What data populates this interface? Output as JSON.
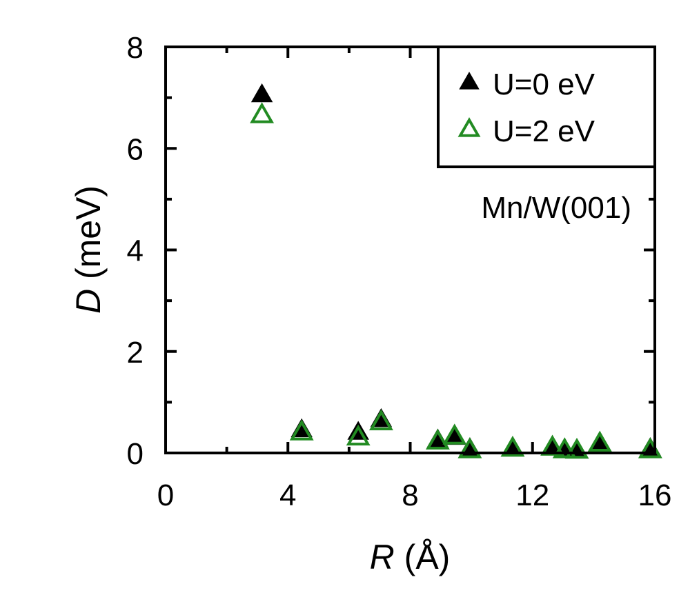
{
  "chart_data": {
    "type": "scatter",
    "title": "",
    "xlabel_var": "R",
    "xlabel_unit": " (Å)",
    "ylabel_var": "D",
    "ylabel_unit": " (meV)",
    "xlim": [
      0,
      16
    ],
    "ylim": [
      0,
      8
    ],
    "xticks": [
      0,
      4,
      8,
      12,
      16
    ],
    "yticks": [
      0,
      2,
      4,
      6,
      8
    ],
    "annotation": "Mn/W(001)",
    "legend_placement": "top-right",
    "series": [
      {
        "name": "U=0 eV",
        "marker": "filled-triangle",
        "color": "#000000",
        "x": [
          3.15,
          4.45,
          6.3,
          7.05,
          8.9,
          9.45,
          9.95,
          11.35,
          12.65,
          13.05,
          13.45,
          14.2,
          15.85
        ],
        "y": [
          7.05,
          0.45,
          0.4,
          0.65,
          0.25,
          0.3,
          0.08,
          0.1,
          0.12,
          0.07,
          0.06,
          0.2,
          0.08
        ]
      },
      {
        "name": "U=2 eV",
        "marker": "open-triangle",
        "color": "#228B22",
        "x": [
          3.15,
          4.45,
          6.3,
          7.05,
          8.9,
          9.45,
          9.95,
          11.35,
          12.65,
          13.05,
          13.45,
          14.2,
          15.85
        ],
        "y": [
          6.65,
          0.4,
          0.3,
          0.6,
          0.22,
          0.32,
          0.05,
          0.08,
          0.1,
          0.05,
          0.04,
          0.18,
          0.05
        ]
      }
    ]
  }
}
